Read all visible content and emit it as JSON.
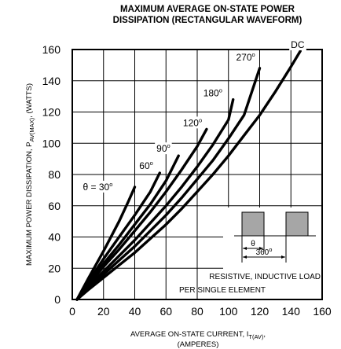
{
  "chart_data": {
    "type": "line",
    "title_line1": "MAXIMUM AVERAGE ON-STATE POWER",
    "title_line2": "DISSIPATION (RECTANGULAR WAVEFORM)",
    "xlabel_main": "AVERAGE ON-STATE  CURRENT, I",
    "xlabel_sub": "T(AV)",
    "xlabel_tail": ",",
    "xlabel_line2": "(AMPERES)",
    "ylabel_main": "MAXIMUM POWER DISSIPATION, P",
    "ylabel_sub": "AV(MAX)",
    "ylabel_tail": ", (WATTS)",
    "xlim": [
      0,
      160
    ],
    "ylim": [
      0,
      160
    ],
    "x_ticks": [
      "0",
      "20",
      "40",
      "60",
      "80",
      "100",
      "120",
      "140",
      "160"
    ],
    "y_ticks": [
      "0",
      "20",
      "40",
      "60",
      "80",
      "100",
      "120",
      "140",
      "160"
    ],
    "grid": true,
    "series": [
      {
        "name": "θ = 30",
        "label_prefix": "θ = 30",
        "label_sup": "o",
        "points": [
          [
            3,
            0
          ],
          [
            10,
            13
          ],
          [
            20,
            31
          ],
          [
            30,
            50
          ],
          [
            36,
            63
          ],
          [
            40,
            72
          ]
        ]
      },
      {
        "name": "60",
        "label_prefix": "60",
        "label_sup": "o",
        "points": [
          [
            3,
            0
          ],
          [
            10,
            11
          ],
          [
            20,
            26
          ],
          [
            30,
            40
          ],
          [
            40,
            54
          ],
          [
            50,
            69
          ],
          [
            56,
            81
          ]
        ]
      },
      {
        "name": "90",
        "label_prefix": "90",
        "label_sup": "o",
        "points": [
          [
            3,
            0
          ],
          [
            10,
            10
          ],
          [
            20,
            23
          ],
          [
            30,
            35
          ],
          [
            40,
            48
          ],
          [
            50,
            61
          ],
          [
            60,
            76
          ],
          [
            68,
            92
          ]
        ]
      },
      {
        "name": "120",
        "label_prefix": "120",
        "label_sup": "o",
        "points": [
          [
            3,
            0
          ],
          [
            10,
            9
          ],
          [
            20,
            21
          ],
          [
            30,
            32
          ],
          [
            40,
            44
          ],
          [
            50,
            56
          ],
          [
            60,
            69
          ],
          [
            70,
            83
          ],
          [
            80,
            98
          ],
          [
            86,
            109
          ]
        ]
      },
      {
        "name": "180",
        "label_prefix": "180",
        "label_sup": "o",
        "points": [
          [
            3,
            0
          ],
          [
            10,
            8
          ],
          [
            20,
            18
          ],
          [
            30,
            28
          ],
          [
            40,
            38
          ],
          [
            50,
            49
          ],
          [
            60,
            60
          ],
          [
            70,
            72
          ],
          [
            80,
            85
          ],
          [
            90,
            99
          ],
          [
            100,
            115
          ],
          [
            103,
            128
          ]
        ]
      },
      {
        "name": "270",
        "label_prefix": "270",
        "label_sup": "o",
        "points": [
          [
            3,
            0
          ],
          [
            10,
            7
          ],
          [
            20,
            16
          ],
          [
            30,
            25
          ],
          [
            40,
            34
          ],
          [
            50,
            44
          ],
          [
            60,
            54
          ],
          [
            70,
            65
          ],
          [
            80,
            77
          ],
          [
            90,
            89
          ],
          [
            100,
            103
          ],
          [
            110,
            118
          ],
          [
            120,
            148
          ]
        ]
      },
      {
        "name": "DC",
        "label_prefix": "DC",
        "label_sup": "",
        "points": [
          [
            3,
            0
          ],
          [
            10,
            6
          ],
          [
            20,
            14
          ],
          [
            30,
            22
          ],
          [
            40,
            30
          ],
          [
            50,
            39
          ],
          [
            60,
            48
          ],
          [
            70,
            58
          ],
          [
            80,
            69
          ],
          [
            90,
            80
          ],
          [
            100,
            92
          ],
          [
            110,
            105
          ],
          [
            120,
            118
          ],
          [
            130,
            133
          ],
          [
            140,
            149
          ],
          [
            146,
            159
          ]
        ]
      }
    ],
    "inset": {
      "theta_label": "θ",
      "period_label": "360",
      "period_sup": "o",
      "note_line1": "RESISTIVE, INDUCTIVE LOAD",
      "note_line2": "PER SINGLE ELEMENT"
    }
  }
}
